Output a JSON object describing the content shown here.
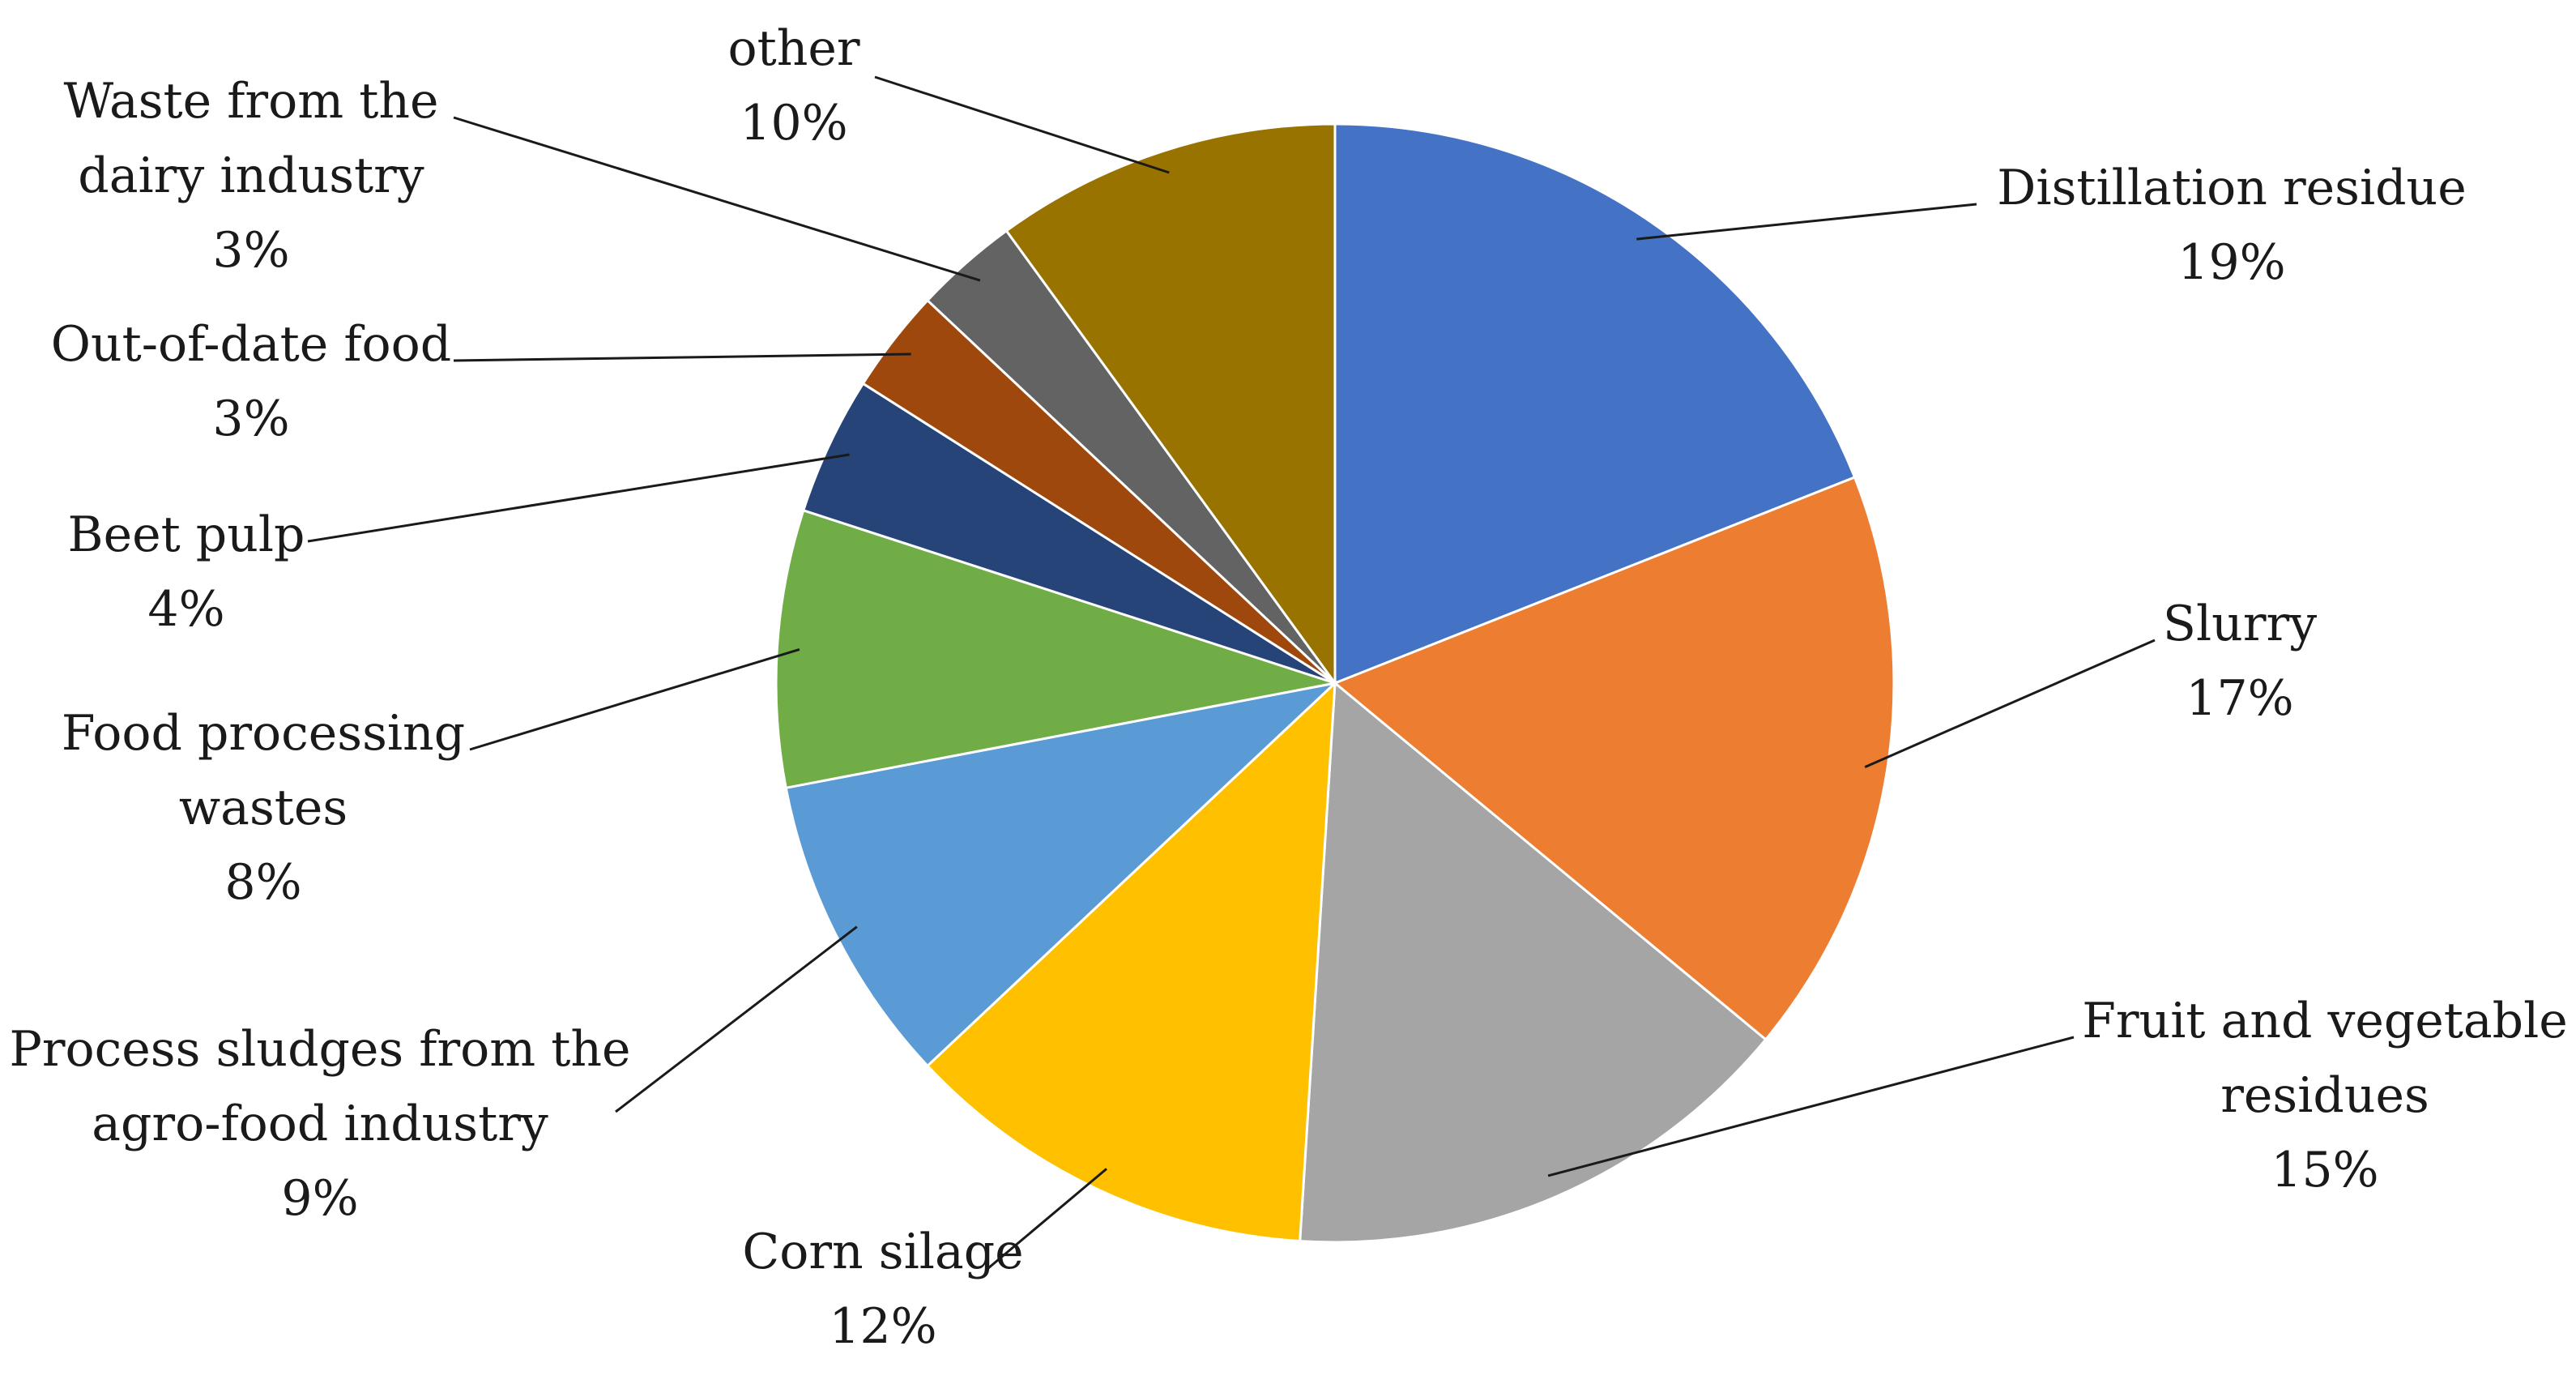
{
  "chart_data": {
    "type": "pie",
    "start_angle_deg": 0,
    "direction": "clockwise",
    "slices": [
      {
        "name": "Distillation residue",
        "label_lines": [
          "Distillation residue"
        ],
        "value": 19,
        "value_label": "19%",
        "color": "#4472C4"
      },
      {
        "name": "Slurry",
        "label_lines": [
          "Slurry"
        ],
        "value": 17,
        "value_label": "17%",
        "color": "#ED7D31"
      },
      {
        "name": "Fruit and vegetable residues",
        "label_lines": [
          "Fruit and vegetable",
          "residues"
        ],
        "value": 15,
        "value_label": "15%",
        "color": "#A5A5A5"
      },
      {
        "name": "Corn silage",
        "label_lines": [
          "Corn silage"
        ],
        "value": 12,
        "value_label": "12%",
        "color": "#FFC000"
      },
      {
        "name": "Process sludges from the agro-food industry",
        "label_lines": [
          "Process sludges from the",
          "agro-food industry"
        ],
        "value": 9,
        "value_label": "9%",
        "color": "#5B9BD5"
      },
      {
        "name": "Food processing wastes",
        "label_lines": [
          "Food processing",
          "wastes"
        ],
        "value": 8,
        "value_label": "8%",
        "color": "#70AD47"
      },
      {
        "name": "Beet pulp",
        "label_lines": [
          "Beet pulp"
        ],
        "value": 4,
        "value_label": "4%",
        "color": "#264478"
      },
      {
        "name": "Out-of-date food",
        "label_lines": [
          "Out-of-date food"
        ],
        "value": 3,
        "value_label": "3%",
        "color": "#9E480E"
      },
      {
        "name": "Waste from the dairy industry",
        "label_lines": [
          "Waste from the",
          "dairy industry"
        ],
        "value": 3,
        "value_label": "3%",
        "color": "#636363"
      },
      {
        "name": "other",
        "label_lines": [
          "other"
        ],
        "value": 10,
        "value_label": "10%",
        "color": "#997300"
      }
    ]
  }
}
